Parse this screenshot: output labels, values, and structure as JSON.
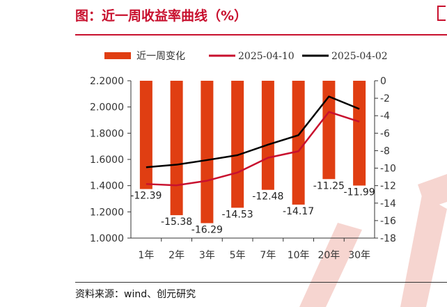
{
  "header": {
    "title": "图：近一周收益率曲线（%）"
  },
  "footer": {
    "source": "资料来源：wind、创元研究"
  },
  "colors": {
    "bar": "#e03e12",
    "series_recent": "#c8102e",
    "series_prev": "#000000",
    "title": "#c8102e",
    "watermark": "#f6d5d0"
  },
  "chart_data": {
    "type": "bar",
    "categories": [
      "1年",
      "2年",
      "3年",
      "5年",
      "7年",
      "10年",
      "20年",
      "30年"
    ],
    "series": [
      {
        "name": "近一周变化",
        "type": "bar",
        "axis": "right",
        "values": [
          -12.39,
          -15.38,
          -16.29,
          -14.53,
          -12.48,
          -14.17,
          -11.25,
          -11.99
        ]
      },
      {
        "name": "2025-04-10",
        "type": "line",
        "axis": "left",
        "values": [
          1.4125,
          1.4025,
          1.4375,
          1.5,
          1.6125,
          1.6625,
          1.9625,
          1.8875
        ]
      },
      {
        "name": "2025-04-02",
        "type": "line",
        "axis": "left",
        "values": [
          1.54,
          1.56,
          1.595,
          1.6325,
          1.7125,
          1.785,
          2.08,
          1.985
        ]
      }
    ],
    "y_left": {
      "min": 1.0,
      "max": 2.2,
      "step": 0.2,
      "tick_labels": [
        "1.0000",
        "1.2000",
        "1.4000",
        "1.6000",
        "1.8000",
        "2.0000",
        "2.2000"
      ]
    },
    "y_right": {
      "min": -18,
      "max": 0,
      "step": 2,
      "tick_labels": [
        "-18",
        "-16",
        "-14",
        "-12",
        "-10",
        "-8",
        "-6",
        "-4",
        "-2",
        "0"
      ]
    },
    "data_labels": [
      "-12.39",
      "-15.38",
      "-16.29",
      "-14.53",
      "-12.48",
      "-14.17",
      "-11.25",
      "-11.99"
    ],
    "legend_position": "top",
    "grid": false
  }
}
